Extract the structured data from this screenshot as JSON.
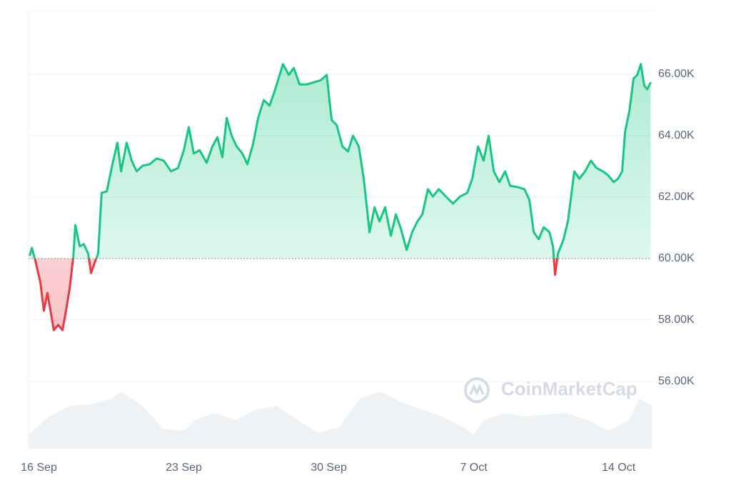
{
  "chart_data": {
    "type": "line",
    "watermark": "CoinMarketCap",
    "baseline": 60000,
    "above_color": "#16c784",
    "below_color": "#ea3943",
    "grid": true,
    "xlim": [
      -0.5,
      29.6
    ],
    "xticks": [
      {
        "value": 0,
        "label": "16 Sep"
      },
      {
        "value": 7,
        "label": "23 Sep"
      },
      {
        "value": 14,
        "label": "30 Sep"
      },
      {
        "value": 21,
        "label": "7 Oct"
      },
      {
        "value": 28,
        "label": "14 Oct"
      }
    ],
    "ylim": [
      53810,
      68070
    ],
    "yticks": [
      {
        "value": 56000,
        "label": "56.00K"
      },
      {
        "value": 58000,
        "label": "58.00K"
      },
      {
        "value": 60000,
        "label": "60.00K"
      },
      {
        "value": 62000,
        "label": "62.00K"
      },
      {
        "value": 64000,
        "label": "64.00K"
      },
      {
        "value": 66000,
        "label": "66.00K"
      }
    ],
    "y2lim": [
      0,
      100
    ],
    "x": [
      -0.45,
      -0.34,
      -0.17,
      0.07,
      0.24,
      0.41,
      0.59,
      0.72,
      0.93,
      1.14,
      1.28,
      1.48,
      1.66,
      1.76,
      1.97,
      2.17,
      2.38,
      2.52,
      2.69,
      2.86,
      3.03,
      3.28,
      3.55,
      3.79,
      3.97,
      4.24,
      4.48,
      4.72,
      5.0,
      5.34,
      5.69,
      6.03,
      6.38,
      6.72,
      7.0,
      7.24,
      7.48,
      7.76,
      8.1,
      8.38,
      8.62,
      8.86,
      9.07,
      9.31,
      9.55,
      9.83,
      10.07,
      10.34,
      10.59,
      10.86,
      11.14,
      11.38,
      11.55,
      11.79,
      12.07,
      12.31,
      12.59,
      12.93,
      13.28,
      13.62,
      13.9,
      14.14,
      14.38,
      14.66,
      14.93,
      15.17,
      15.45,
      15.69,
      15.97,
      16.21,
      16.45,
      16.72,
      17.0,
      17.24,
      17.48,
      17.76,
      18.03,
      18.28,
      18.52,
      18.79,
      19.03,
      19.31,
      19.66,
      20.0,
      20.34,
      20.69,
      20.93,
      21.21,
      21.48,
      21.72,
      21.97,
      22.24,
      22.52,
      22.76,
      23.1,
      23.45,
      23.69,
      23.9,
      24.14,
      24.38,
      24.66,
      24.83,
      24.93,
      25.07,
      25.34,
      25.55,
      25.86,
      26.1,
      26.38,
      26.66,
      26.93,
      27.24,
      27.48,
      27.76,
      27.97,
      28.17,
      28.31,
      28.52,
      28.72,
      28.9,
      29.07,
      29.24,
      29.38,
      29.55
    ],
    "series": [
      {
        "color": "#16c784",
        "values": [
          60090,
          60350,
          59930,
          59230,
          58300,
          58880,
          58190,
          57670,
          57840,
          57670,
          58190,
          59000,
          60050,
          61090,
          60400,
          60470,
          60160,
          59530,
          59860,
          60160,
          62140,
          62190,
          63070,
          63770,
          62840,
          63770,
          63190,
          62840,
          63020,
          63070,
          63260,
          63190,
          62840,
          62950,
          63530,
          64280,
          63420,
          63530,
          63120,
          63650,
          63950,
          63300,
          64580,
          64000,
          63650,
          63420,
          63070,
          63720,
          64580,
          65160,
          64980,
          65440,
          65810,
          66330,
          65980,
          66210,
          65670,
          65670,
          65740,
          65810,
          65980,
          64510,
          64350,
          63650,
          63490,
          64000,
          63650,
          62600,
          60860,
          61670,
          61210,
          61670,
          60740,
          61440,
          60980,
          60280,
          60860,
          61210,
          61440,
          62260,
          62020,
          62260,
          62020,
          61790,
          62020,
          62140,
          62600,
          63650,
          63190,
          64000,
          62840,
          62490,
          62840,
          62370,
          62330,
          62260,
          61910,
          60860,
          60630,
          61020,
          60860,
          60400,
          59470,
          60160,
          60630,
          61210,
          62840,
          62600,
          62840,
          63190,
          62950,
          62840,
          62720,
          62490,
          62600,
          62840,
          64120,
          64810,
          65860,
          65980,
          66330,
          65630,
          65510,
          65740
        ]
      },
      {
        "axis": "y2",
        "color": "#eff2f5",
        "x": [
          -0.5,
          0.5,
          1.5,
          2.5,
          3.5,
          4,
          5,
          6,
          7,
          7.5,
          8.5,
          9.5,
          10.5,
          11.5,
          12.5,
          13.5,
          14.5,
          15.5,
          16.5,
          17.5,
          18.5,
          19.5,
          20.5,
          21,
          21.5,
          22.5,
          23.5,
          24.5,
          25.5,
          26.5,
          27.5,
          28.5,
          29,
          29.6
        ],
        "values": [
          20,
          45,
          60,
          62,
          70,
          80,
          60,
          28,
          25,
          40,
          50,
          40,
          55,
          60,
          40,
          22,
          30,
          70,
          80,
          65,
          55,
          45,
          30,
          20,
          40,
          50,
          45,
          48,
          50,
          40,
          25,
          40,
          70,
          60
        ]
      }
    ]
  }
}
